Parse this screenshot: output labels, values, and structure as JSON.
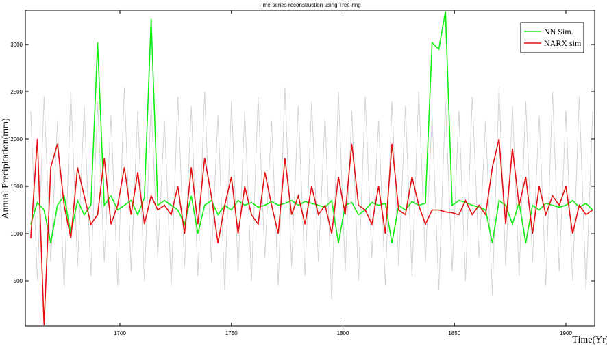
{
  "chart_data": {
    "type": "line",
    "title": "Time-series reconstruction using Tree-ring",
    "xlabel": "Time(Yr)",
    "ylabel": "Annual Precipitation(mm)",
    "x": [
      1660,
      1663,
      1666,
      1669,
      1672,
      1675,
      1678,
      1681,
      1684,
      1687,
      1690,
      1693,
      1696,
      1699,
      1702,
      1705,
      1708,
      1711,
      1714,
      1717,
      1720,
      1723,
      1726,
      1729,
      1732,
      1735,
      1738,
      1741,
      1744,
      1747,
      1750,
      1753,
      1756,
      1759,
      1762,
      1765,
      1768,
      1771,
      1774,
      1777,
      1780,
      1783,
      1786,
      1789,
      1792,
      1795,
      1798,
      1801,
      1804,
      1807,
      1810,
      1813,
      1816,
      1819,
      1822,
      1825,
      1828,
      1831,
      1834,
      1837,
      1840,
      1843,
      1846,
      1849,
      1852,
      1855,
      1858,
      1861,
      1864,
      1867,
      1870,
      1873,
      1876,
      1879,
      1882,
      1885,
      1888,
      1891,
      1894,
      1897,
      1900,
      1903,
      1906,
      1909,
      1912
    ],
    "series": [
      {
        "color": "#d3d3d3",
        "values": [
          2300,
          500,
          2450,
          700,
          2200,
          400,
          2500,
          650,
          2350,
          550,
          2400,
          700,
          2250,
          450,
          2550,
          600,
          2300,
          500,
          2400,
          750,
          2200,
          450,
          2450,
          650,
          2350,
          550,
          2500,
          700,
          2250,
          400,
          2400,
          600,
          2300,
          500,
          2450,
          750,
          2200,
          450,
          2550,
          650,
          2350,
          550,
          2400,
          700,
          2250,
          300,
          2500,
          600,
          2300,
          500,
          2450,
          750,
          2200,
          450,
          2400,
          650,
          2350,
          550,
          2500,
          700,
          2250,
          400,
          2400,
          600,
          2300,
          500,
          2450,
          750,
          2200,
          350,
          2550,
          650,
          2350,
          550,
          2400,
          700,
          2250,
          450,
          2500,
          600,
          2300,
          500,
          2450,
          400,
          2300
        ]
      },
      {
        "name": "NN Sim.",
        "color": "#11ee11",
        "values": [
          1100,
          1330,
          1250,
          900,
          1300,
          1400,
          1000,
          1350,
          1200,
          1300,
          3020,
          1300,
          1400,
          1250,
          1300,
          1350,
          1200,
          1380,
          3270,
          1300,
          1350,
          1300,
          1250,
          1100,
          1400,
          1000,
          1300,
          1350,
          1200,
          1300,
          1250,
          1350,
          1300,
          1330,
          1280,
          1300,
          1340,
          1300,
          1320,
          1350,
          1300,
          1340,
          1320,
          1300,
          1280,
          1350,
          900,
          1300,
          1330,
          1200,
          1250,
          1330,
          1300,
          1320,
          900,
          1300,
          1250,
          1340,
          1300,
          1320,
          3020,
          2950,
          3350,
          1300,
          1350,
          1330,
          1300,
          1280,
          1250,
          900,
          1350,
          1300,
          1100,
          1330,
          900,
          1300,
          1250,
          1320,
          1300,
          1280,
          1300,
          1350,
          1280,
          1320,
          1250
        ]
      },
      {
        "name": "NARX sim",
        "color": "#e31010",
        "values": [
          950,
          2000,
          30,
          1700,
          1950,
          1300,
          950,
          1700,
          1400,
          1100,
          1200,
          1800,
          1100,
          1300,
          1700,
          1200,
          1650,
          1100,
          1400,
          1250,
          1300,
          1200,
          1500,
          1000,
          1700,
          1100,
          1800,
          1400,
          900,
          1300,
          1600,
          1000,
          1500,
          1200,
          1100,
          1650,
          1300,
          1000,
          1800,
          1200,
          1400,
          1100,
          1500,
          1200,
          1300,
          1000,
          1600,
          1200,
          1950,
          1300,
          1250,
          1100,
          1500,
          1000,
          1950,
          1250,
          1200,
          1600,
          1300,
          1100,
          1250,
          1250,
          1230,
          1220,
          1200,
          1350,
          1200,
          1300,
          1200,
          1700,
          2000,
          1100,
          1900,
          1300,
          1600,
          1000,
          1500,
          1200,
          1400,
          1300,
          1500,
          1000,
          1300,
          1200,
          1250
        ]
      }
    ],
    "xlim": [
      1657.6,
      1912.9
    ],
    "xticks": [
      1700,
      1750,
      1800,
      1850,
      1900
    ],
    "ylim": [
      22,
      3362
    ],
    "yticks": [
      500,
      1000,
      1500,
      2000,
      2500,
      3000
    ],
    "legend": "upper right"
  }
}
